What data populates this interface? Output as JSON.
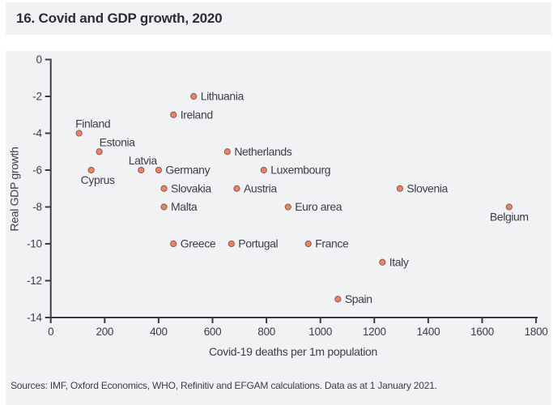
{
  "title": "16. Covid and GDP growth, 2020",
  "source_note": "Sources: IMF, Oxford Economics, WHO, Refinitiv and EFGAM calculations. Data as at 1 January 2021.",
  "colors": {
    "panel_bg": "#f1f2f4",
    "page_bg": "#ffffff",
    "axis": "#3c3c48",
    "text": "#3d3d4b",
    "title_text": "#2c2c3a",
    "marker_fill": "#ec8166",
    "marker_stroke": "#8a5a50"
  },
  "chart_data": {
    "type": "scatter",
    "title": "16. Covid and GDP growth, 2020",
    "xlabel": "Covid-19 deaths per 1m population",
    "ylabel": "Real GDP growth",
    "xlim": [
      0,
      1800
    ],
    "ylim": [
      -14,
      0
    ],
    "x_ticks": [
      0,
      200,
      400,
      600,
      800,
      1000,
      1200,
      1400,
      1600,
      1800
    ],
    "y_ticks": [
      0,
      -2,
      -4,
      -6,
      -8,
      -10,
      -12,
      -14
    ],
    "grid": false,
    "legend": false,
    "points": [
      {
        "label": "Lithuania",
        "x": 530,
        "y": -2,
        "label_position": "right"
      },
      {
        "label": "Ireland",
        "x": 455,
        "y": -3,
        "label_position": "right"
      },
      {
        "label": "Finland",
        "x": 105,
        "y": -4,
        "label_position": "above",
        "label_dx": 17
      },
      {
        "label": "Estonia",
        "x": 180,
        "y": -5,
        "label_position": "above",
        "label_dx": 22
      },
      {
        "label": "Netherlands",
        "x": 655,
        "y": -5,
        "label_position": "right"
      },
      {
        "label": "Cyprus",
        "x": 150,
        "y": -6,
        "label_position": "below",
        "label_dx": 8
      },
      {
        "label": "Latvia",
        "x": 335,
        "y": -6,
        "label_position": "above",
        "label_dx": 2
      },
      {
        "label": "Germany",
        "x": 400,
        "y": -6,
        "label_position": "right"
      },
      {
        "label": "Luxembourg",
        "x": 790,
        "y": -6,
        "label_position": "right"
      },
      {
        "label": "Slovakia",
        "x": 420,
        "y": -7,
        "label_position": "right"
      },
      {
        "label": "Austria",
        "x": 690,
        "y": -7,
        "label_position": "right"
      },
      {
        "label": "Slovenia",
        "x": 1295,
        "y": -7,
        "label_position": "right"
      },
      {
        "label": "Malta",
        "x": 420,
        "y": -8,
        "label_position": "right"
      },
      {
        "label": "Euro area",
        "x": 880,
        "y": -8,
        "label_position": "right"
      },
      {
        "label": "Belgium",
        "x": 1700,
        "y": -8,
        "label_position": "below",
        "label_dx": 0
      },
      {
        "label": "Greece",
        "x": 455,
        "y": -10,
        "label_position": "right"
      },
      {
        "label": "Portugal",
        "x": 670,
        "y": -10,
        "label_position": "right"
      },
      {
        "label": "France",
        "x": 955,
        "y": -10,
        "label_position": "right"
      },
      {
        "label": "Italy",
        "x": 1230,
        "y": -11,
        "label_position": "right"
      },
      {
        "label": "Spain",
        "x": 1065,
        "y": -13,
        "label_position": "right"
      }
    ]
  }
}
